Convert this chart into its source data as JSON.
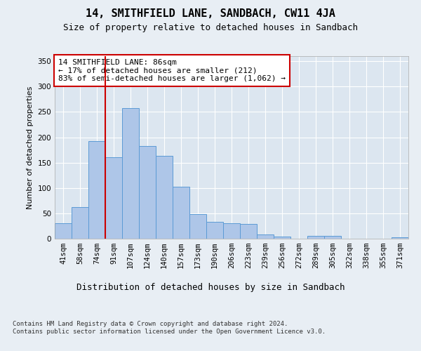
{
  "title": "14, SMITHFIELD LANE, SANDBACH, CW11 4JA",
  "subtitle": "Size of property relative to detached houses in Sandbach",
  "xlabel": "Distribution of detached houses by size in Sandbach",
  "ylabel": "Number of detached properties",
  "categories": [
    "41sqm",
    "58sqm",
    "74sqm",
    "91sqm",
    "107sqm",
    "124sqm",
    "140sqm",
    "157sqm",
    "173sqm",
    "190sqm",
    "206sqm",
    "223sqm",
    "239sqm",
    "256sqm",
    "272sqm",
    "289sqm",
    "305sqm",
    "322sqm",
    "338sqm",
    "355sqm",
    "371sqm"
  ],
  "values": [
    30,
    63,
    192,
    160,
    258,
    183,
    163,
    103,
    49,
    33,
    30,
    29,
    9,
    4,
    0,
    5,
    6,
    0,
    0,
    0,
    3
  ],
  "bar_color": "#aec6e8",
  "bar_edge_color": "#5b9bd5",
  "background_color": "#e8eef4",
  "plot_bg_color": "#dce6f0",
  "grid_color": "#ffffff",
  "red_line_x": 2.5,
  "annotation_text": "14 SMITHFIELD LANE: 86sqm\n← 17% of detached houses are smaller (212)\n83% of semi-detached houses are larger (1,062) →",
  "annotation_box_color": "#ffffff",
  "annotation_box_edge": "#cc0000",
  "red_line_color": "#cc0000",
  "ylim": [
    0,
    360
  ],
  "yticks": [
    0,
    50,
    100,
    150,
    200,
    250,
    300,
    350
  ],
  "footer": "Contains HM Land Registry data © Crown copyright and database right 2024.\nContains public sector information licensed under the Open Government Licence v3.0.",
  "title_fontsize": 11,
  "subtitle_fontsize": 9,
  "xlabel_fontsize": 9,
  "ylabel_fontsize": 8,
  "tick_fontsize": 7.5,
  "annotation_fontsize": 8
}
